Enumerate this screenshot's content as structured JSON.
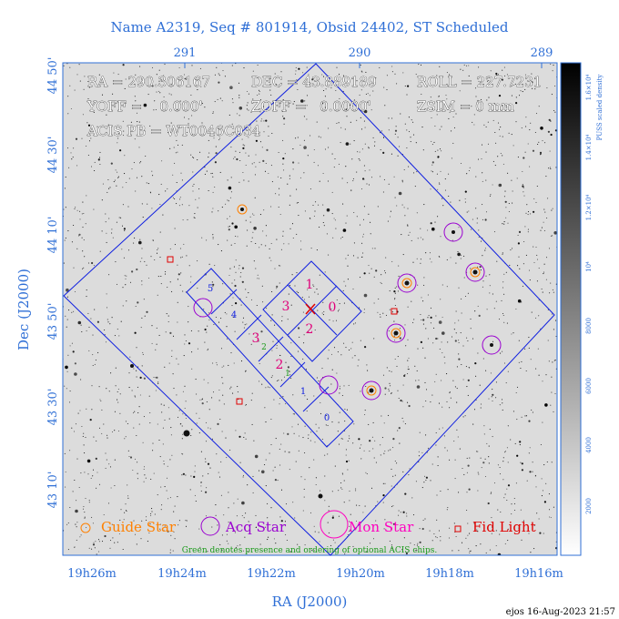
{
  "title": "Name A2319, Seq # 801914, Obsid 24402, ST Scheduled",
  "info": {
    "ra": "RA = 290.306167",
    "dec": "DEC = 43.889189",
    "roll": "ROLL = 227.7231",
    "yoff": "YOFF =    0.000'",
    "zoff": "ZOFF =   0.0000'",
    "zsim": "ZSIM = 0 mm",
    "acis_pb": "ACIS PB = WT0046C034"
  },
  "axes": {
    "top_ticks": [
      "291",
      "290",
      "289"
    ],
    "left_ticks": [
      "44 50'",
      "44 30'",
      "44 10'",
      "43 50'",
      "43 30'",
      "43 10'"
    ],
    "bottom_ticks": [
      "19h26m",
      "19h24m",
      "19h22m",
      "19h20m",
      "19h18m",
      "19h16m"
    ],
    "x_label": "RA (J2000)",
    "y_label": "Dec (J2000)"
  },
  "colorbar": {
    "label": "PUSS scaled density",
    "ticks": [
      "2000",
      "4000",
      "6000",
      "8000",
      "10⁴",
      "1.2×10⁴",
      "1.4×10⁴",
      "1.6×10⁴"
    ]
  },
  "chips": {
    "imaging": [
      "0",
      "1",
      "2",
      "3"
    ],
    "spectroscopy": [
      "0",
      "1",
      "2",
      "3",
      "4",
      "5"
    ],
    "optional": [
      "1",
      "2"
    ]
  },
  "legend": {
    "guide": "Guide Star",
    "acq": "Acq Star",
    "mon": "Mon Star",
    "fid": "Fid Light",
    "note": "Green denotes presence and ordering of optional ACIS chips."
  },
  "footer": "ejos 16-Aug-2023 21:57",
  "colors": {
    "axis": "#2f6fd6",
    "guide": "#ff8000",
    "acq": "#9a00d0",
    "mon": "#ff00c0",
    "fid": "#e00000",
    "chip_label": "#e0007a",
    "optional": "#1a9a1a",
    "outline": "#1020e0"
  }
}
